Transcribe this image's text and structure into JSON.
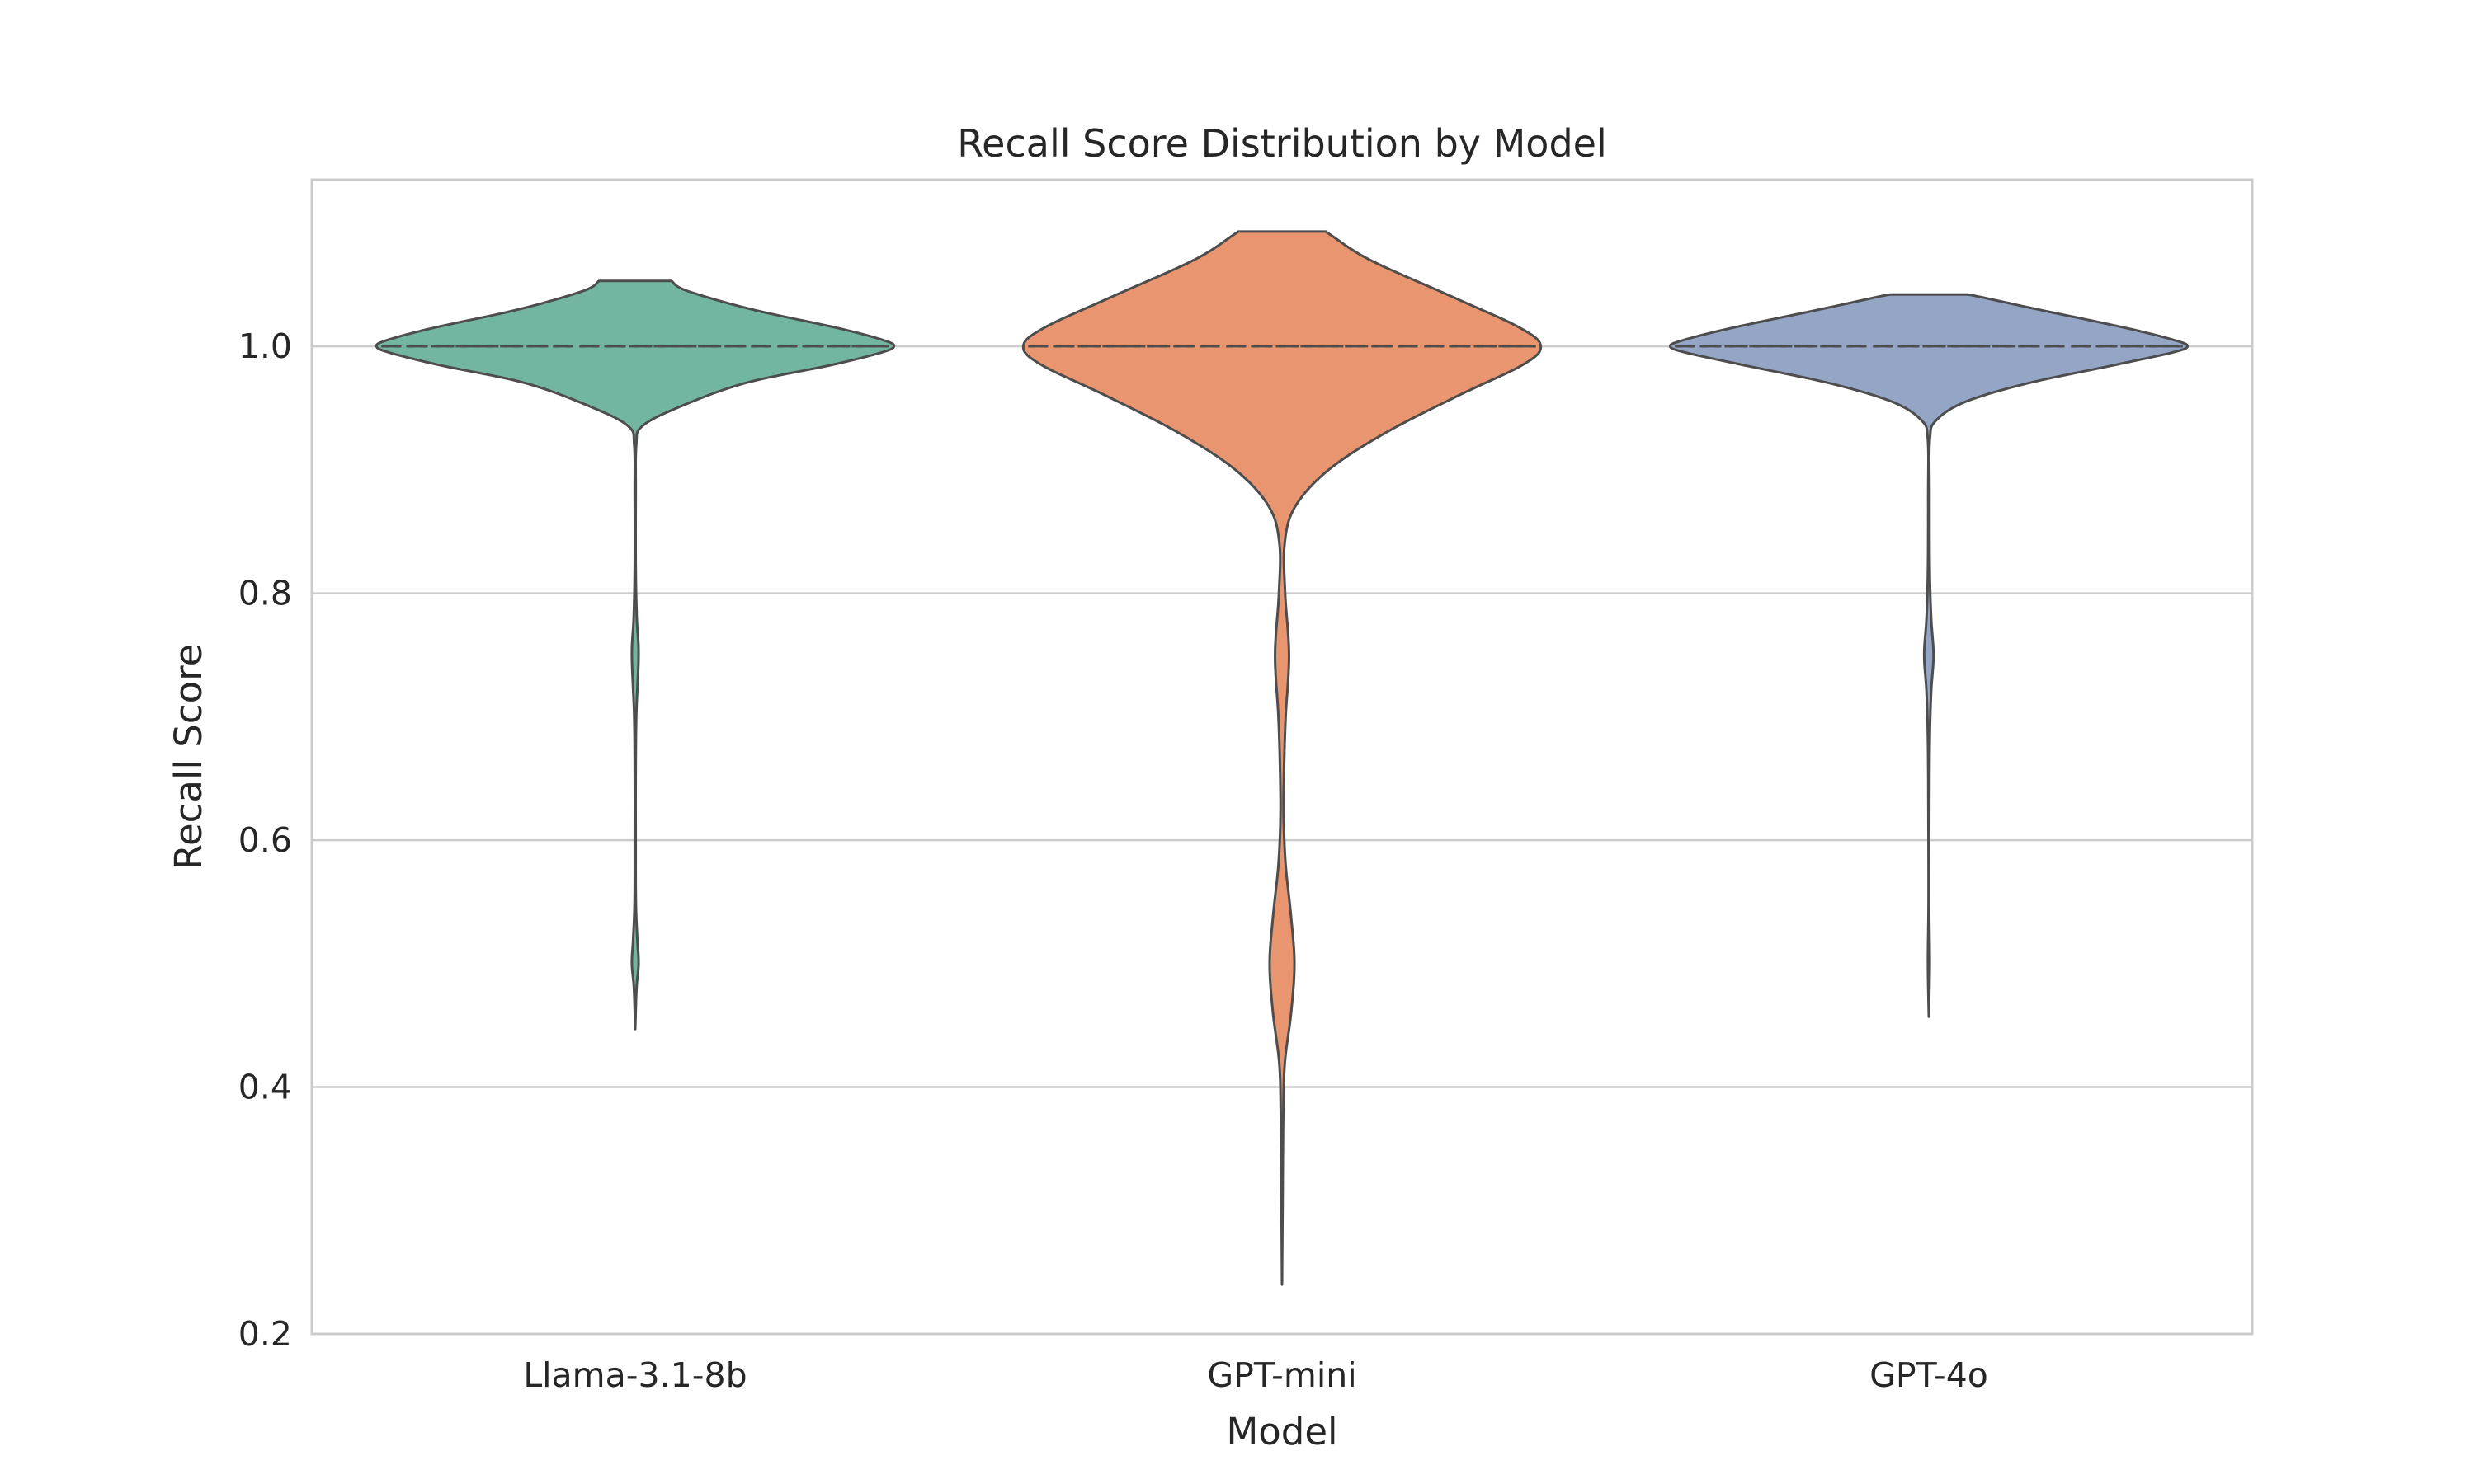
{
  "chart_data": {
    "type": "violin",
    "title": "Recall Score Distribution by Model",
    "xlabel": "Model",
    "ylabel": "Recall Score",
    "categories": [
      "Llama-3.1-8b",
      "GPT-mini",
      "GPT-4o"
    ],
    "ylim": [
      0.2,
      1.135
    ],
    "yticks": [
      0.2,
      0.4,
      0.6,
      0.8,
      1.0
    ],
    "ytick_labels": [
      "0.2",
      "0.4",
      "0.6",
      "0.8",
      "1.0"
    ],
    "grid": "horizontal",
    "inner": "quartile-lines",
    "series": [
      {
        "category": "Llama-3.1-8b",
        "color": "#72b6a1",
        "min": 0.447,
        "max": 1.053,
        "median": 1.0,
        "q1": 1.0,
        "q3": 1.0,
        "profile": [
          [
            0.447,
            0.0
          ],
          [
            0.48,
            0.005
          ],
          [
            0.5,
            0.013
          ],
          [
            0.52,
            0.008
          ],
          [
            0.55,
            0.0025
          ],
          [
            0.6,
            0.0018
          ],
          [
            0.65,
            0.0018
          ],
          [
            0.7,
            0.004
          ],
          [
            0.75,
            0.013
          ],
          [
            0.78,
            0.006
          ],
          [
            0.82,
            0.002
          ],
          [
            0.88,
            0.002
          ],
          [
            0.92,
            0.004
          ],
          [
            0.935,
            0.025
          ],
          [
            0.95,
            0.16
          ],
          [
            0.97,
            0.42
          ],
          [
            0.985,
            0.76
          ],
          [
            0.995,
            0.95
          ],
          [
            1.0,
            1.0
          ],
          [
            1.005,
            0.96
          ],
          [
            1.015,
            0.78
          ],
          [
            1.03,
            0.45
          ],
          [
            1.045,
            0.2
          ],
          [
            1.053,
            0.14
          ]
        ]
      },
      {
        "category": "GPT-mini",
        "color": "#e9956f",
        "min": 0.24,
        "max": 1.093,
        "median": 1.0,
        "q1": 1.0,
        "q3": 1.0,
        "profile": [
          [
            0.24,
            0.0
          ],
          [
            0.3,
            0.002
          ],
          [
            0.38,
            0.005
          ],
          [
            0.42,
            0.011
          ],
          [
            0.46,
            0.035
          ],
          [
            0.5,
            0.048
          ],
          [
            0.54,
            0.034
          ],
          [
            0.58,
            0.014
          ],
          [
            0.62,
            0.006
          ],
          [
            0.66,
            0.008
          ],
          [
            0.7,
            0.014
          ],
          [
            0.75,
            0.027
          ],
          [
            0.8,
            0.012
          ],
          [
            0.84,
            0.01
          ],
          [
            0.87,
            0.05
          ],
          [
            0.9,
            0.18
          ],
          [
            0.93,
            0.4
          ],
          [
            0.96,
            0.68
          ],
          [
            0.985,
            0.93
          ],
          [
            1.0,
            1.0
          ],
          [
            1.015,
            0.92
          ],
          [
            1.04,
            0.66
          ],
          [
            1.07,
            0.34
          ],
          [
            1.09,
            0.19
          ],
          [
            1.093,
            0.17
          ]
        ]
      },
      {
        "category": "GPT-4o",
        "color": "#94a5c6",
        "min": 0.457,
        "max": 1.042,
        "median": 1.0,
        "q1": 1.0,
        "q3": 1.0,
        "profile": [
          [
            0.457,
            0.0
          ],
          [
            0.5,
            0.0035
          ],
          [
            0.55,
            0.0012
          ],
          [
            0.62,
            0.0018
          ],
          [
            0.68,
            0.0035
          ],
          [
            0.72,
            0.009
          ],
          [
            0.75,
            0.018
          ],
          [
            0.78,
            0.009
          ],
          [
            0.82,
            0.0035
          ],
          [
            0.88,
            0.0025
          ],
          [
            0.925,
            0.004
          ],
          [
            0.94,
            0.028
          ],
          [
            0.955,
            0.14
          ],
          [
            0.97,
            0.38
          ],
          [
            0.985,
            0.72
          ],
          [
            0.995,
            0.94
          ],
          [
            1.0,
            1.0
          ],
          [
            1.005,
            0.95
          ],
          [
            1.015,
            0.76
          ],
          [
            1.03,
            0.42
          ],
          [
            1.04,
            0.2
          ],
          [
            1.042,
            0.15
          ]
        ]
      }
    ]
  }
}
